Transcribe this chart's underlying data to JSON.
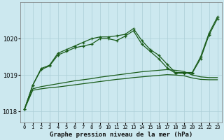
{
  "title": "Graphe pression niveau de la mer (hPa)",
  "bg_color": "#cce8ef",
  "grid_color": "#aacdd6",
  "line_color": "#1a5c1a",
  "yticks": [
    1018,
    1019,
    1020
  ],
  "ylim": [
    1017.7,
    1021.0
  ],
  "xlim": [
    -0.5,
    23.5
  ],
  "x_labels": [
    "0",
    "1",
    "2",
    "3",
    "4",
    "5",
    "6",
    "7",
    "8",
    "9",
    "10",
    "11",
    "12",
    "13",
    "14",
    "15",
    "16",
    "17",
    "18",
    "19",
    "20",
    "21",
    "22",
    "23"
  ],
  "band1": [
    1018.05,
    1018.58,
    1018.62,
    1018.65,
    1018.67,
    1018.7,
    1018.73,
    1018.76,
    1018.79,
    1018.82,
    1018.85,
    1018.88,
    1018.9,
    1018.93,
    1018.95,
    1018.97,
    1018.99,
    1019.01,
    1019.0,
    1018.98,
    1018.92,
    1018.88,
    1018.87,
    1018.87
  ],
  "band2": [
    1018.05,
    1018.62,
    1018.68,
    1018.72,
    1018.76,
    1018.8,
    1018.84,
    1018.87,
    1018.9,
    1018.94,
    1018.97,
    1019.0,
    1019.03,
    1019.06,
    1019.09,
    1019.11,
    1019.13,
    1019.15,
    1019.13,
    1019.1,
    1019.0,
    1018.95,
    1018.93,
    1018.93
  ],
  "jagged1": [
    1018.05,
    1018.72,
    1019.15,
    1019.25,
    1019.55,
    1019.65,
    1019.75,
    1019.8,
    1019.85,
    1020.0,
    1020.0,
    1019.95,
    1020.07,
    1020.22,
    1019.85,
    1019.65,
    1019.45,
    1019.2,
    1019.05,
    1019.05,
    1019.05,
    1019.45,
    1020.1,
    1020.55
  ],
  "jagged2": [
    1018.05,
    1018.72,
    1019.18,
    1019.27,
    1019.6,
    1019.7,
    1019.8,
    1019.9,
    1020.0,
    1020.05,
    1020.05,
    1020.08,
    1020.12,
    1020.28,
    1019.95,
    1019.7,
    1019.55,
    1019.3,
    1019.07,
    1019.07,
    1019.07,
    1019.5,
    1020.15,
    1020.6
  ]
}
